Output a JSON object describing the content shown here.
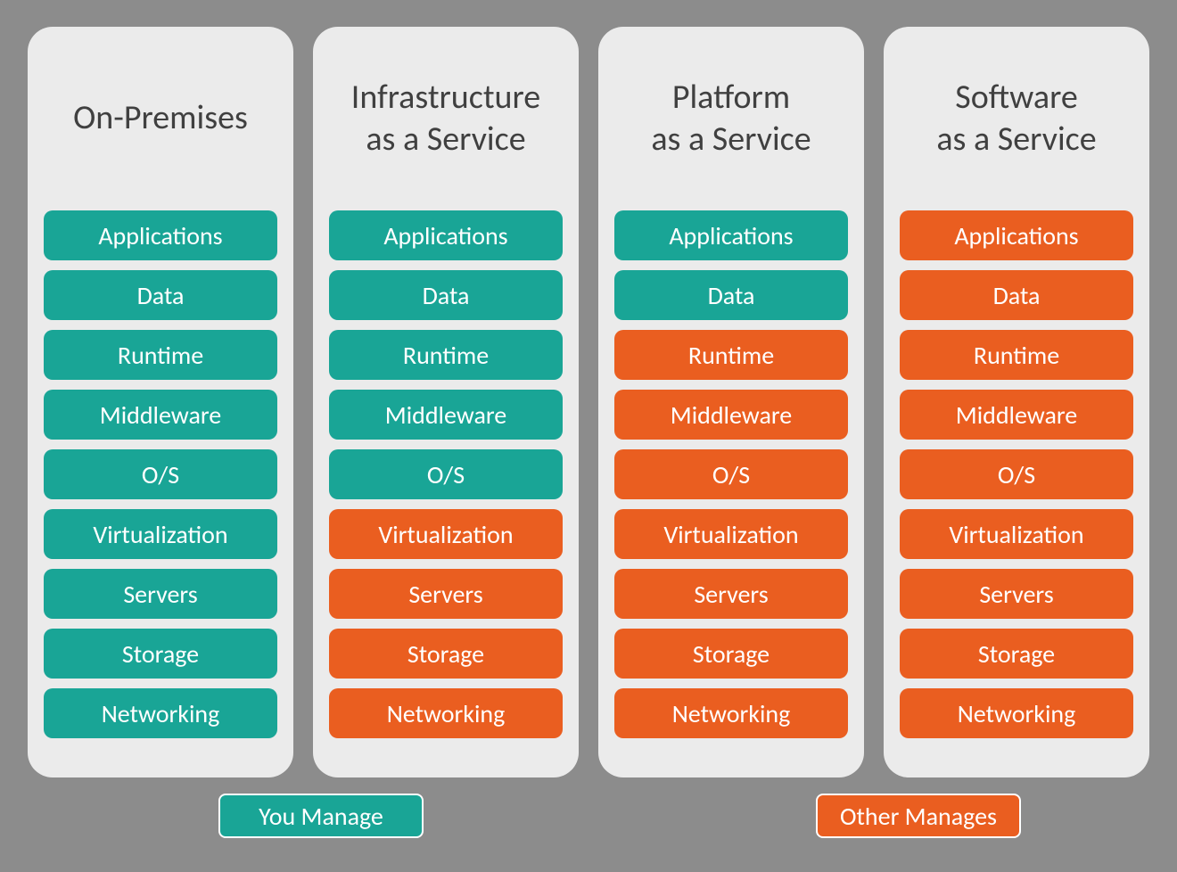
{
  "type": "infographic",
  "background_color": "#8c8c8c",
  "column_background_color": "#ebebeb",
  "column_border_radius": 28,
  "title_color": "#404040",
  "title_fontsize": 38,
  "layer_fontsize": 28,
  "layer_text_color": "#ffffff",
  "layer_border_radius": 10,
  "layer_height": 56,
  "layer_gap": 11,
  "colors": {
    "you_manage": "#19a596",
    "other_manages": "#ea5e20"
  },
  "layer_labels": [
    "Applications",
    "Data",
    "Runtime",
    "Middleware",
    "O/S",
    "Virtualization",
    "Servers",
    "Storage",
    "Networking"
  ],
  "columns": [
    {
      "title": "On-Premises",
      "ownership": [
        "you",
        "you",
        "you",
        "you",
        "you",
        "you",
        "you",
        "you",
        "you"
      ]
    },
    {
      "title": "Infrastructure\nas a Service",
      "ownership": [
        "you",
        "you",
        "you",
        "you",
        "you",
        "other",
        "other",
        "other",
        "other"
      ]
    },
    {
      "title": "Platform\nas a Service",
      "ownership": [
        "you",
        "you",
        "other",
        "other",
        "other",
        "other",
        "other",
        "other",
        "other"
      ]
    },
    {
      "title": "Software\nas a Service",
      "ownership": [
        "other",
        "other",
        "other",
        "other",
        "other",
        "other",
        "other",
        "other",
        "other"
      ]
    }
  ],
  "legend": [
    {
      "label": "You Manage",
      "color_key": "you_manage"
    },
    {
      "label": "Other Manages",
      "color_key": "other_manages"
    }
  ]
}
